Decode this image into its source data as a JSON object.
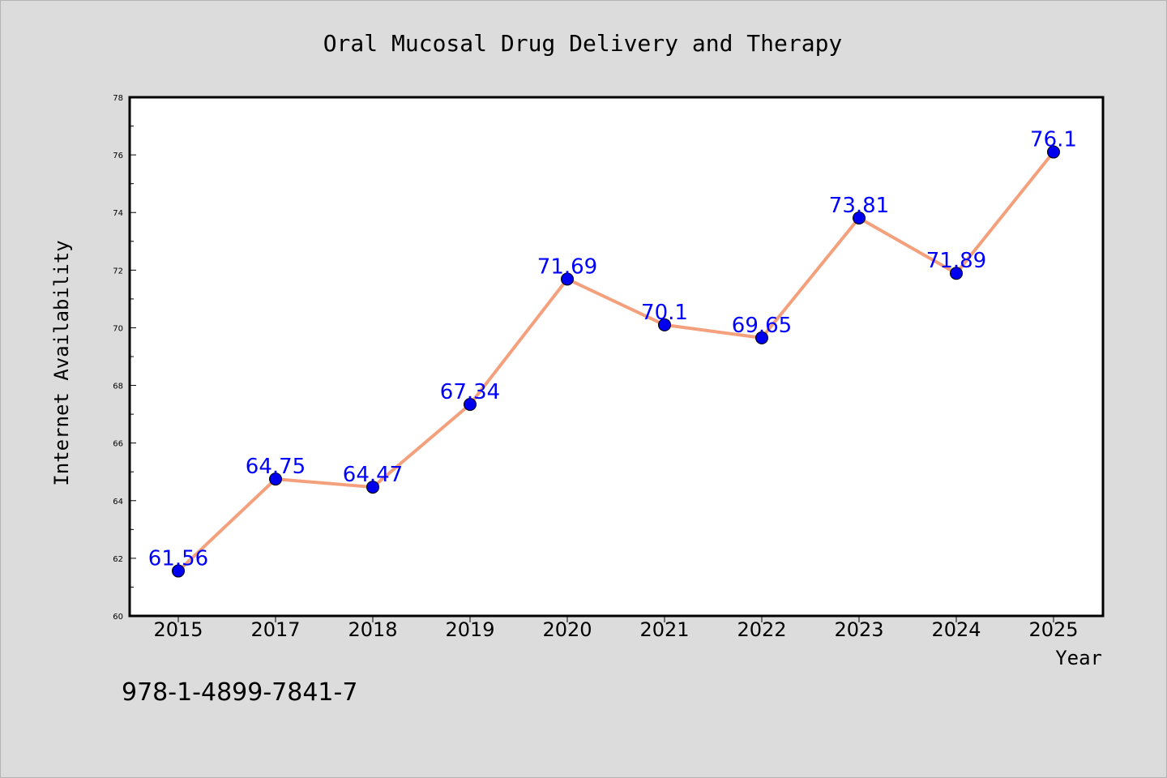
{
  "chart_data": {
    "type": "line",
    "title": "Oral Mucosal Drug Delivery and Therapy",
    "xlabel": "Year",
    "ylabel": "Internet Availability",
    "categories": [
      "2015",
      "2017",
      "2018",
      "2019",
      "2020",
      "2021",
      "2022",
      "2023",
      "2024",
      "2025"
    ],
    "series": [
      {
        "values": [
          61.56,
          64.75,
          64.47,
          67.34,
          71.69,
          70.1,
          69.65,
          73.81,
          71.89,
          76.1
        ],
        "data_labels": [
          "61.56",
          "64.75",
          "64.47",
          "67.34",
          "71.69",
          "70.1",
          "69.65",
          "73.81",
          "71.89",
          "76.1"
        ]
      }
    ],
    "ylim": [
      60,
      78
    ],
    "yticks": [
      "60",
      "62",
      "64",
      "66",
      "68",
      "70",
      "72",
      "74",
      "76",
      "78"
    ],
    "grid": false,
    "line_color": "#f4a07c",
    "marker_color": "#0000ee",
    "label_color": "#0000ff"
  },
  "footer_text": "978-1-4899-7841-7"
}
